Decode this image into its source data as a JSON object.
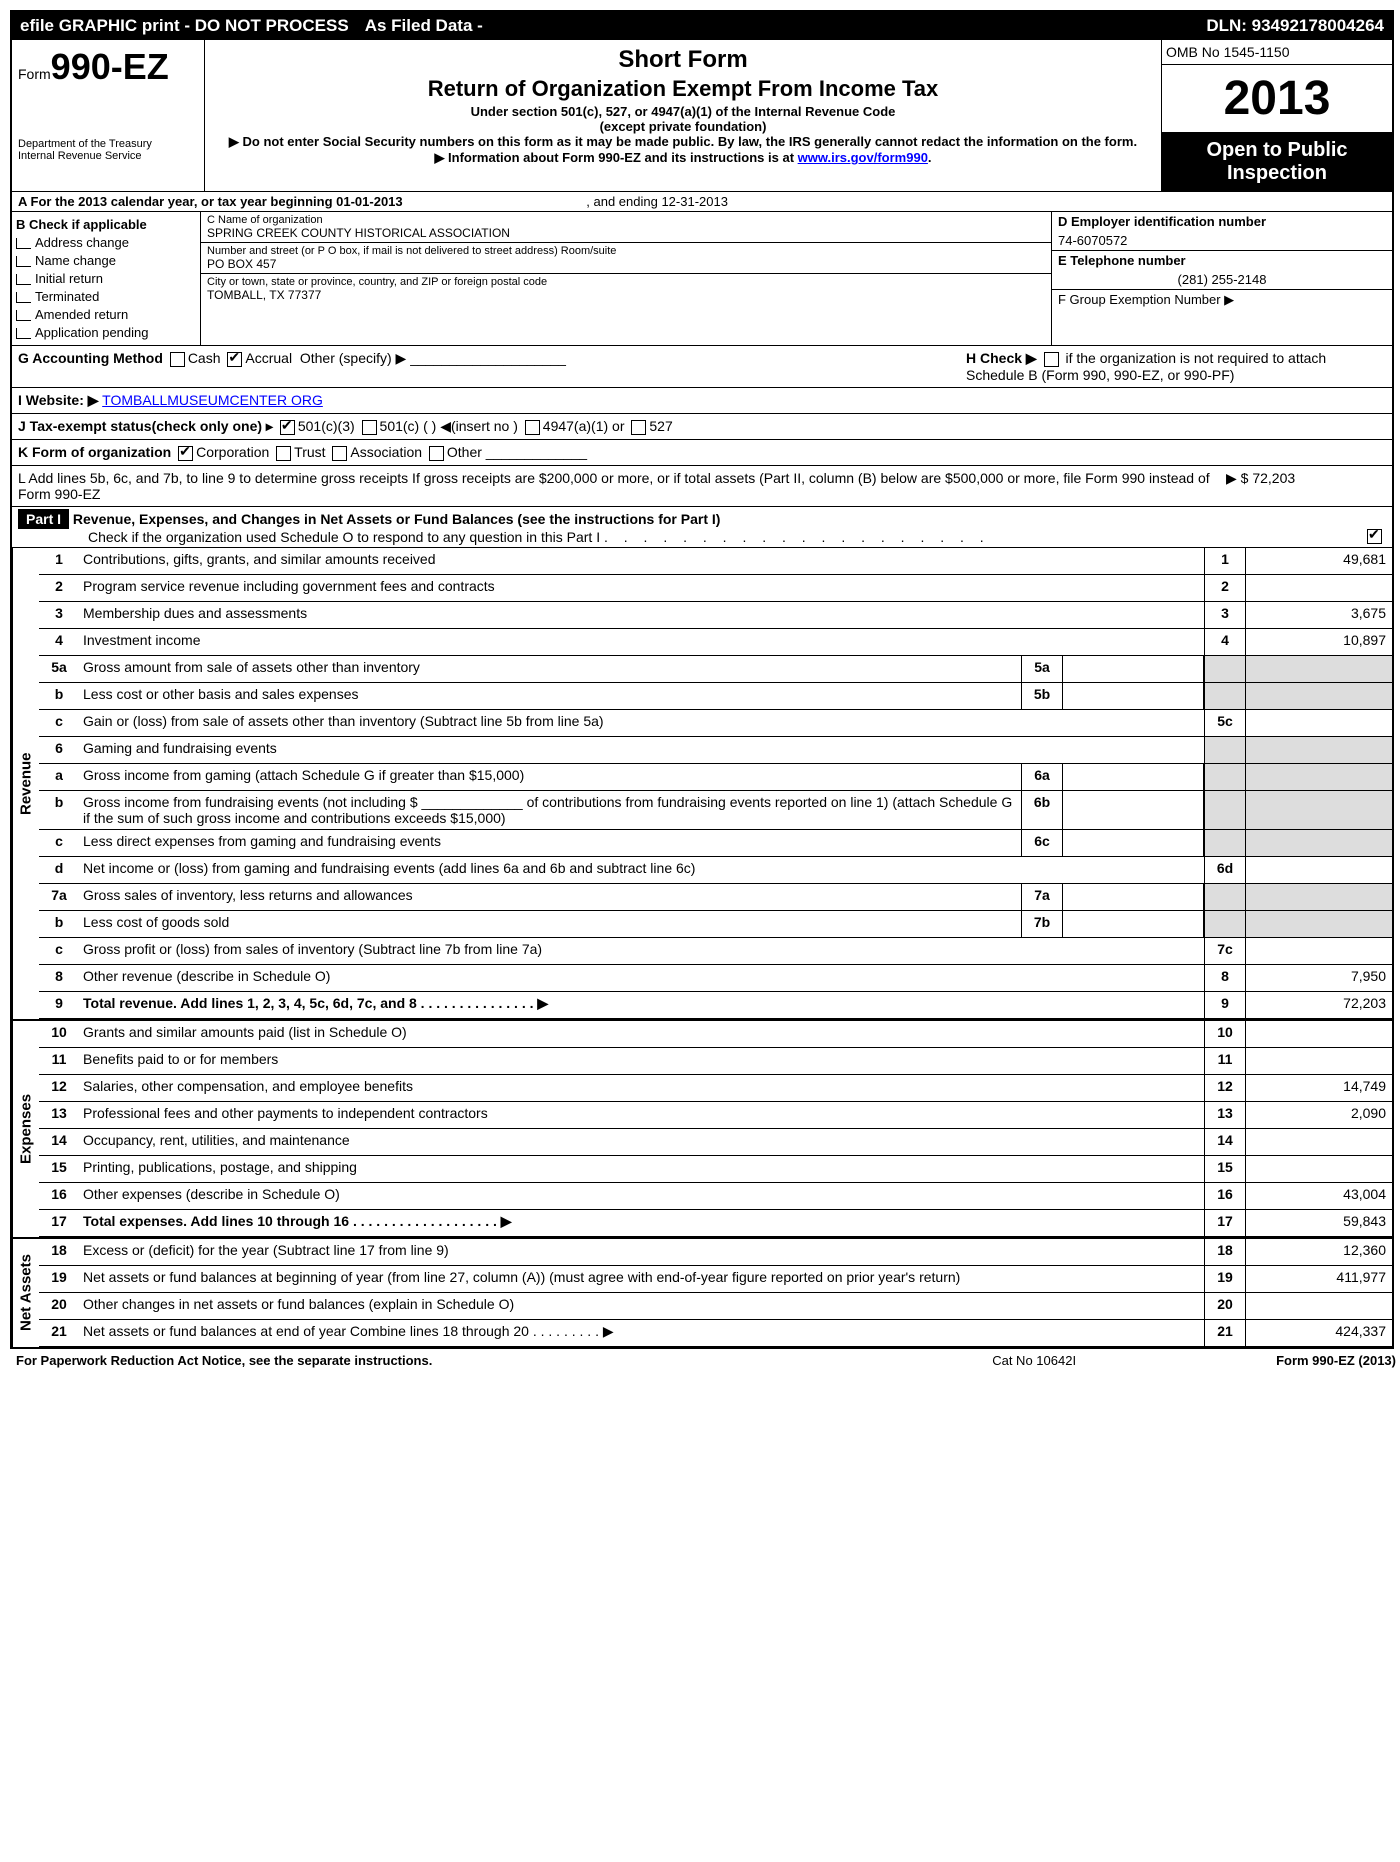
{
  "topbar": {
    "efile": "efile GRAPHIC print - DO NOT PROCESS",
    "asfiled": "As Filed Data -",
    "dln": "DLN: 93492178004264"
  },
  "header": {
    "form_prefix": "Form",
    "form_num": "990-EZ",
    "dept": "Department of the Treasury",
    "irs": "Internal Revenue Service",
    "title1": "Short Form",
    "title2": "Return of Organization Exempt From Income Tax",
    "sub1": "Under section 501(c), 527, or 4947(a)(1) of the Internal Revenue Code",
    "sub2": "(except private foundation)",
    "note1": "▶ Do not enter Social Security numbers on this form as it may be made public. By law, the IRS generally cannot redact the information on the form.",
    "note2_pre": "▶ Information about Form 990-EZ and its instructions is at ",
    "note2_link": "www.irs.gov/form990",
    "omb": "OMB No 1545-1150",
    "year": "2013",
    "open1": "Open to Public",
    "open2": "Inspection"
  },
  "sectionA": {
    "a": "A  For the 2013 calendar year, or tax year beginning 01-01-2013",
    "a_end": ", and ending 12-31-2013"
  },
  "colB": {
    "title": "B  Check if applicable",
    "items": [
      "Address change",
      "Name change",
      "Initial return",
      "Terminated",
      "Amended return",
      "Application pending"
    ]
  },
  "colC": {
    "name_label": "C Name of organization",
    "name": "SPRING CREEK COUNTY HISTORICAL ASSOCIATION",
    "street_label": "Number and street (or P O box, if mail is not delivered to street address) Room/suite",
    "street": "PO BOX 457",
    "city_label": "City or town, state or province, country, and ZIP or foreign postal code",
    "city": "TOMBALL, TX  77377"
  },
  "colDE": {
    "d_label": "D Employer identification number",
    "d_val": "74-6070572",
    "e_label": "E Telephone number",
    "e_val": "(281) 255-2148",
    "f_label": "F Group Exemption Number   ▶"
  },
  "mid": {
    "g": "G Accounting Method",
    "g_cash": "Cash",
    "g_accrual": "Accrual",
    "g_other": "Other (specify) ▶",
    "h": "H  Check ▶",
    "h_text": "if the organization is not required to attach Schedule B (Form 990, 990-EZ, or 990-PF)",
    "i": "I Website: ▶",
    "i_link": "TOMBALLMUSEUMCENTER ORG",
    "j": "J Tax-exempt status(check only one) ▸",
    "j_501c3": "501(c)(3)",
    "j_501c": "501(c) (   ) ◀(insert no )",
    "j_4947": "4947(a)(1) or",
    "j_527": "527",
    "k": "K Form of organization",
    "k_corp": "Corporation",
    "k_trust": "Trust",
    "k_assoc": "Association",
    "k_other": "Other",
    "l": "L Add lines 5b, 6c, and 7b, to line 9 to determine gross receipts  If gross receipts are $200,000 or more, or if total assets (Part II, column (B) below are $500,000 or more, file Form 990 instead of Form 990-EZ",
    "l_val": "▶ $ 72,203"
  },
  "part1": {
    "label": "Part I",
    "title": "Revenue, Expenses, and Changes in Net Assets or Fund Balances (see the instructions for Part I)",
    "check": "Check if the organization used Schedule O to respond to any question in this Part I"
  },
  "sidelabels": {
    "rev": "Revenue",
    "exp": "Expenses",
    "net": "Net Assets"
  },
  "lines": [
    {
      "n": "1",
      "desc": "Contributions, gifts, grants, and similar amounts received",
      "box": "1",
      "val": "49,681"
    },
    {
      "n": "2",
      "desc": "Program service revenue including government fees and contracts",
      "box": "2",
      "val": ""
    },
    {
      "n": "3",
      "desc": "Membership dues and assessments",
      "box": "3",
      "val": "3,675"
    },
    {
      "n": "4",
      "desc": "Investment income",
      "box": "4",
      "val": "10,897"
    },
    {
      "n": "5a",
      "desc": "Gross amount from sale of assets other than inventory",
      "sub": "5a",
      "shaded": true
    },
    {
      "n": "b",
      "desc": "Less  cost or other basis and sales expenses",
      "sub": "5b",
      "shaded": true
    },
    {
      "n": "c",
      "desc": "Gain or (loss) from sale of assets other than inventory (Subtract line 5b from line 5a)",
      "box": "5c",
      "val": ""
    },
    {
      "n": "6",
      "desc": "Gaming and fundraising events",
      "shaded": true,
      "noval": true
    },
    {
      "n": "a",
      "desc": "Gross income from gaming (attach Schedule G if greater than $15,000)",
      "sub": "6a",
      "shaded": true
    },
    {
      "n": "b",
      "desc": "Gross income from fundraising events (not including $ _____________ of contributions from fundraising events reported on line 1) (attach Schedule G if the sum of such gross income and contributions exceeds $15,000)",
      "sub": "6b",
      "shaded": true
    },
    {
      "n": "c",
      "desc": "Less  direct expenses from gaming and fundraising events",
      "sub": "6c",
      "shaded": true
    },
    {
      "n": "d",
      "desc": "Net income or (loss) from gaming and fundraising events (add lines 6a and 6b and subtract line 6c)",
      "box": "6d",
      "val": ""
    },
    {
      "n": "7a",
      "desc": "Gross sales of inventory, less returns and allowances",
      "sub": "7a",
      "shaded": true
    },
    {
      "n": "b",
      "desc": "Less  cost of goods sold",
      "sub": "7b",
      "shaded": true
    },
    {
      "n": "c",
      "desc": "Gross profit or (loss) from sales of inventory (Subtract line 7b from line 7a)",
      "box": "7c",
      "val": ""
    },
    {
      "n": "8",
      "desc": "Other revenue (describe in Schedule O)",
      "box": "8",
      "val": "7,950"
    },
    {
      "n": "9",
      "desc": "Total revenue. Add lines 1, 2, 3, 4, 5c, 6d, 7c, and 8   .  .  .  .  .  .  .  .  .  .  .  .  .  .  .  ▶",
      "box": "9",
      "val": "72,203",
      "bold": true
    }
  ],
  "exp_lines": [
    {
      "n": "10",
      "desc": "Grants and similar amounts paid (list in Schedule O)",
      "box": "10",
      "val": ""
    },
    {
      "n": "11",
      "desc": "Benefits paid to or for members",
      "box": "11",
      "val": ""
    },
    {
      "n": "12",
      "desc": "Salaries, other compensation, and employee benefits",
      "box": "12",
      "val": "14,749"
    },
    {
      "n": "13",
      "desc": "Professional fees and other payments to independent contractors",
      "box": "13",
      "val": "2,090"
    },
    {
      "n": "14",
      "desc": "Occupancy, rent, utilities, and maintenance",
      "box": "14",
      "val": ""
    },
    {
      "n": "15",
      "desc": "Printing, publications, postage, and shipping",
      "box": "15",
      "val": ""
    },
    {
      "n": "16",
      "desc": "Other expenses (describe in Schedule O)",
      "box": "16",
      "val": "43,004"
    },
    {
      "n": "17",
      "desc": "Total expenses. Add lines 10 through 16   .  .  .  .  .  .  .  .  .  .  .  .  .  .  .  .  .  .  .  ▶",
      "box": "17",
      "val": "59,843",
      "bold": true
    }
  ],
  "net_lines": [
    {
      "n": "18",
      "desc": "Excess or (deficit) for the year (Subtract line 17 from line 9)",
      "box": "18",
      "val": "12,360"
    },
    {
      "n": "19",
      "desc": "Net assets or fund balances at beginning of year (from line 27, column (A)) (must agree with end-of-year figure reported on prior year's return)",
      "box": "19",
      "val": "411,977"
    },
    {
      "n": "20",
      "desc": "Other changes in net assets or fund balances (explain in Schedule O)",
      "box": "20",
      "val": ""
    },
    {
      "n": "21",
      "desc": "Net assets or fund balances at end of year  Combine lines 18 through 20   .  .  .  .  .  .  .  .  . ▶",
      "box": "21",
      "val": "424,337"
    }
  ],
  "footer": {
    "left": "For Paperwork Reduction Act Notice, see the separate instructions.",
    "mid": "Cat No 10642I",
    "right": "Form 990-EZ (2013)"
  }
}
